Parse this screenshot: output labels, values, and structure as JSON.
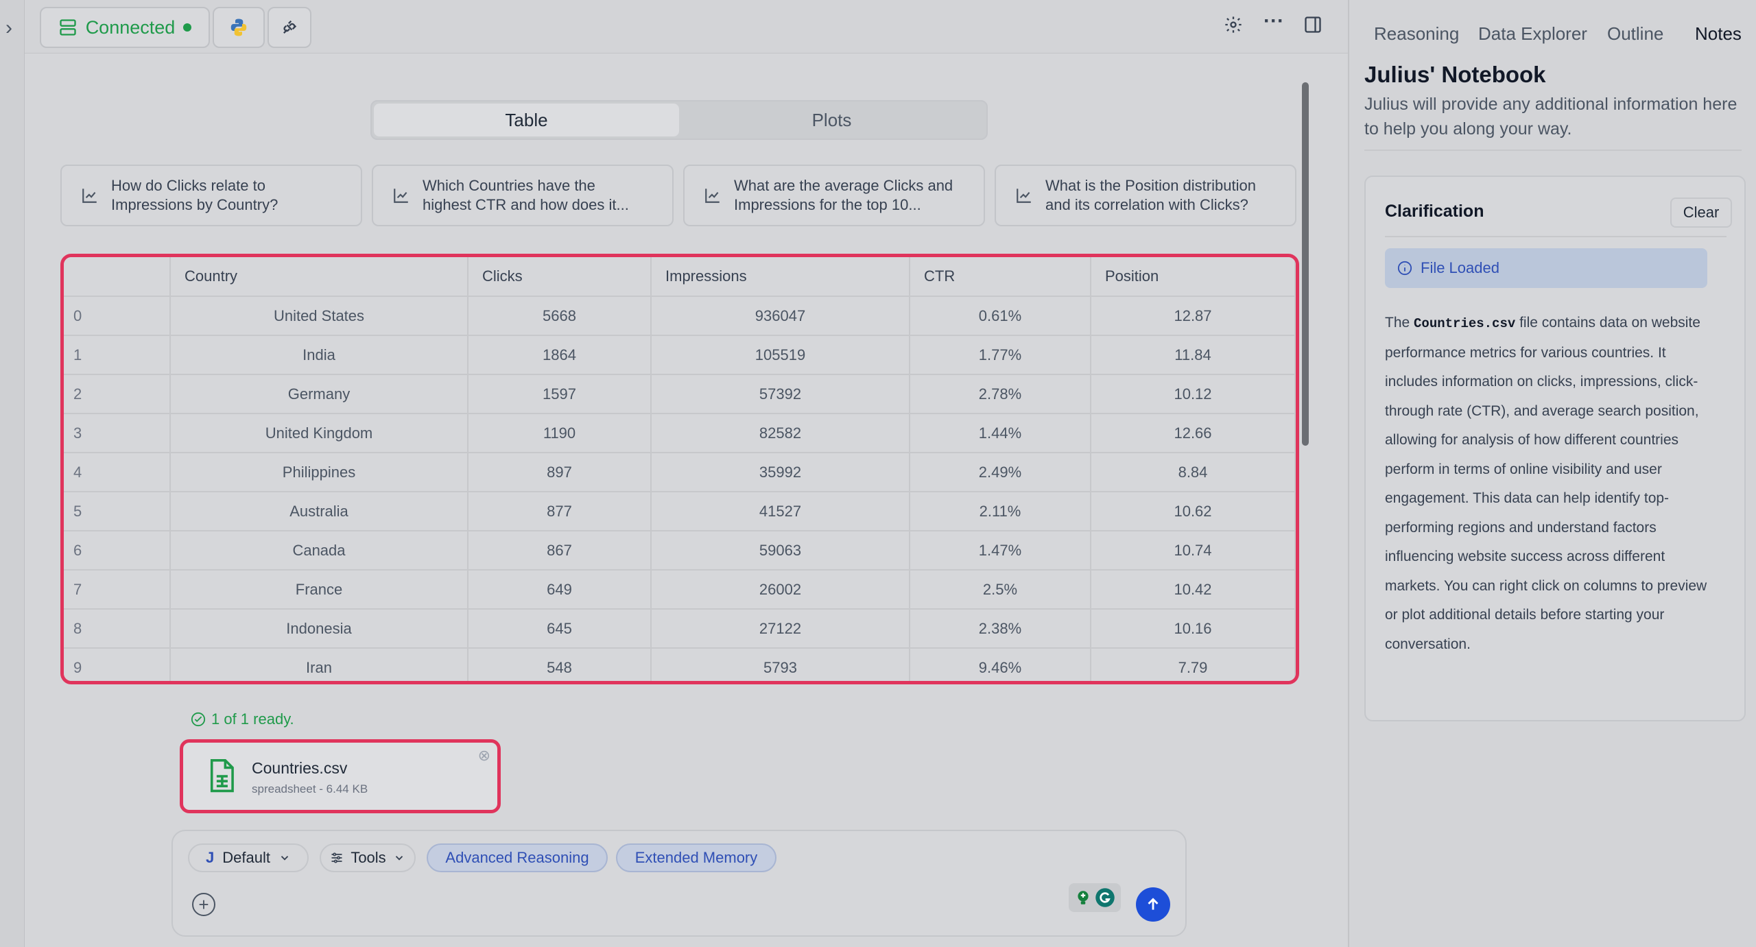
{
  "topbar": {
    "connection_label": "Connected",
    "icons": [
      "server-icon",
      "python-icon",
      "plug-icon",
      "gear-icon",
      "more-icon",
      "panel-toggle-icon"
    ]
  },
  "view_toggle": {
    "table_label": "Table",
    "plots_label": "Plots",
    "active": "Table"
  },
  "suggestions": [
    {
      "line1": "How do Clicks relate to",
      "line2": "Impressions by Country?"
    },
    {
      "line1": "Which Countries have the",
      "line2": "highest CTR and how does it..."
    },
    {
      "line1": "What are the average Clicks and",
      "line2": "Impressions for the top 10..."
    },
    {
      "line1": "What is the Position distribution",
      "line2": "and its correlation with Clicks?"
    }
  ],
  "table": {
    "columns": [
      "",
      "Country",
      "Clicks",
      "Impressions",
      "CTR",
      "Position"
    ],
    "rows": [
      [
        "0",
        "United States",
        "5668",
        "936047",
        "0.61%",
        "12.87"
      ],
      [
        "1",
        "India",
        "1864",
        "105519",
        "1.77%",
        "11.84"
      ],
      [
        "2",
        "Germany",
        "1597",
        "57392",
        "2.78%",
        "10.12"
      ],
      [
        "3",
        "United Kingdom",
        "1190",
        "82582",
        "1.44%",
        "12.66"
      ],
      [
        "4",
        "Philippines",
        "897",
        "35992",
        "2.49%",
        "8.84"
      ],
      [
        "5",
        "Australia",
        "877",
        "41527",
        "2.11%",
        "10.62"
      ],
      [
        "6",
        "Canada",
        "867",
        "59063",
        "1.47%",
        "10.74"
      ],
      [
        "7",
        "France",
        "649",
        "26002",
        "2.5%",
        "10.42"
      ],
      [
        "8",
        "Indonesia",
        "645",
        "27122",
        "2.38%",
        "10.16"
      ],
      [
        "9",
        "Iran",
        "548",
        "5793",
        "9.46%",
        "7.79"
      ]
    ]
  },
  "upload": {
    "status": "1 of 1 ready.",
    "file_name": "Countries.csv",
    "file_meta": "spreadsheet - 6.44 KB"
  },
  "composer": {
    "model_initial": "J",
    "model_label": "Default",
    "tools_label": "Tools",
    "advanced_reasoning_label": "Advanced Reasoning",
    "extended_memory_label": "Extended Memory"
  },
  "right_panel": {
    "tabs": [
      "Reasoning",
      "Data Explorer",
      "Outline",
      "Notes"
    ],
    "active_tab": "Notes",
    "title": "Julius' Notebook",
    "subtitle": "Julius will provide any additional information here to help you along your way.",
    "clarification": {
      "title": "Clarification",
      "clear_label": "Clear",
      "status": "File Loaded",
      "body_prefix": "The ",
      "body_code": "Countries.csv",
      "body_rest": " file contains data on website performance metrics for various countries. It includes information on clicks, impressions, click-through rate (CTR), and average search position, allowing for analysis of how different countries perform in terms of online visibility and user engagement. This data can help identify top-performing regions and understand factors influencing website success across different markets. You can right click on columns to preview or plot additional details before starting your conversation."
    }
  },
  "colors": {
    "accent_green": "#1f9a4a",
    "highlight_red": "#e0345c",
    "accent_blue": "#1d4ed8"
  }
}
